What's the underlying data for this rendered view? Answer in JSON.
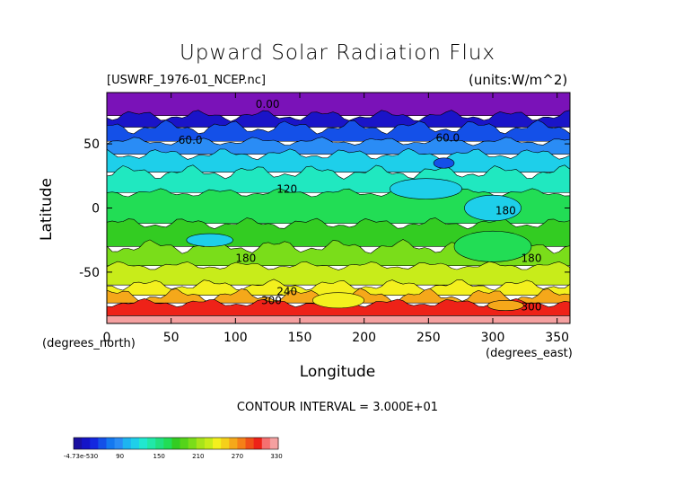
{
  "chart_data": {
    "type": "heatmap",
    "title": "Upward Solar Radiation Flux",
    "file_label": "[USWRF_1976-01_NCEP.nc]",
    "units_label": "(units:W/m^2)",
    "xlabel": "Longitude",
    "xlabel_units": "(degrees_east)",
    "ylabel": "Latitude",
    "ylabel_units": "(degrees_north)",
    "xlim": [
      0,
      360
    ],
    "ylim": [
      -90,
      90
    ],
    "x_ticks": [
      0,
      50,
      100,
      150,
      200,
      250,
      300,
      350
    ],
    "y_ticks": [
      50,
      0,
      -50
    ],
    "contour_interval_text": "CONTOUR INTERVAL = 3.000E+01",
    "contour_labels": [
      {
        "text": "0.00",
        "lon": 125,
        "lat": 78
      },
      {
        "text": "60.0",
        "lon": 65,
        "lat": 50
      },
      {
        "text": "60.0",
        "lon": 265,
        "lat": 52
      },
      {
        "text": "120",
        "lon": 140,
        "lat": 12
      },
      {
        "text": "180",
        "lon": 310,
        "lat": -5
      },
      {
        "text": "180",
        "lon": 108,
        "lat": -42
      },
      {
        "text": "180",
        "lon": 330,
        "lat": -42
      },
      {
        "text": "240",
        "lon": 140,
        "lat": -68
      },
      {
        "text": "300",
        "lon": 128,
        "lat": -75
      },
      {
        "text": "300",
        "lon": 330,
        "lat": -80
      }
    ],
    "bands": [
      {
        "lat_top": 90,
        "lat_bottom": 72,
        "value": 0,
        "color": "#7a12b8"
      },
      {
        "lat_top": 72,
        "lat_bottom": 63,
        "value": 15,
        "color": "#1a14c8"
      },
      {
        "lat_top": 63,
        "lat_bottom": 52,
        "value": 45,
        "color": "#1450e8"
      },
      {
        "lat_top": 52,
        "lat_bottom": 42,
        "value": 75,
        "color": "#2a8cf5"
      },
      {
        "lat_top": 42,
        "lat_bottom": 28,
        "value": 105,
        "color": "#1ecfea"
      },
      {
        "lat_top": 28,
        "lat_bottom": 12,
        "value": 135,
        "color": "#20e8c0"
      },
      {
        "lat_top": 12,
        "lat_bottom": -12,
        "value": 165,
        "color": "#22dd55"
      },
      {
        "lat_top": -12,
        "lat_bottom": -30,
        "value": 180,
        "color": "#33cc22"
      },
      {
        "lat_top": -30,
        "lat_bottom": -45,
        "value": 195,
        "color": "#7add1a"
      },
      {
        "lat_top": -45,
        "lat_bottom": -60,
        "value": 210,
        "color": "#c8ec1a"
      },
      {
        "lat_top": -60,
        "lat_bottom": -68,
        "value": 240,
        "color": "#f3f01e"
      },
      {
        "lat_top": -68,
        "lat_bottom": -74,
        "value": 270,
        "color": "#f5a81a"
      },
      {
        "lat_top": -74,
        "lat_bottom": -84,
        "value": 300,
        "color": "#ee2218"
      },
      {
        "lat_top": -84,
        "lat_bottom": -90,
        "value": 330,
        "color": "#f5a0a0"
      }
    ],
    "patches": [
      {
        "lon": 248,
        "lat": 15,
        "rlon": 28,
        "rlat": 8,
        "color": "#1ecfea"
      },
      {
        "lon": 300,
        "lat": 0,
        "rlon": 22,
        "rlat": 10,
        "color": "#1ecfea"
      },
      {
        "lon": 80,
        "lat": -25,
        "rlon": 18,
        "rlat": 5,
        "color": "#1ecfea"
      },
      {
        "lon": 262,
        "lat": 35,
        "rlon": 8,
        "rlat": 4,
        "color": "#1450e8"
      },
      {
        "lon": 300,
        "lat": -30,
        "rlon": 30,
        "rlat": 12,
        "color": "#22dd55"
      },
      {
        "lon": 180,
        "lat": -72,
        "rlon": 20,
        "rlat": 6,
        "color": "#f3f01e"
      },
      {
        "lon": 310,
        "lat": -76,
        "rlon": 14,
        "rlat": 4,
        "color": "#f5a81a"
      }
    ],
    "colorbar": {
      "colors": [
        "#1a10a0",
        "#1414c8",
        "#1428e0",
        "#1450e8",
        "#1478f0",
        "#2a8cf5",
        "#1eb4f0",
        "#1ecfea",
        "#20e8d0",
        "#20e8a8",
        "#20e080",
        "#22dd55",
        "#33cc22",
        "#55d41a",
        "#7add1a",
        "#a8e41a",
        "#c8ec1a",
        "#f3f01e",
        "#f5d01a",
        "#f5a81a",
        "#f58018",
        "#f05018",
        "#ee2218",
        "#f57070",
        "#f5a0a0"
      ],
      "tick_labels": [
        "-4.73e-530",
        "90",
        "150",
        "210",
        "270",
        "330"
      ]
    }
  }
}
